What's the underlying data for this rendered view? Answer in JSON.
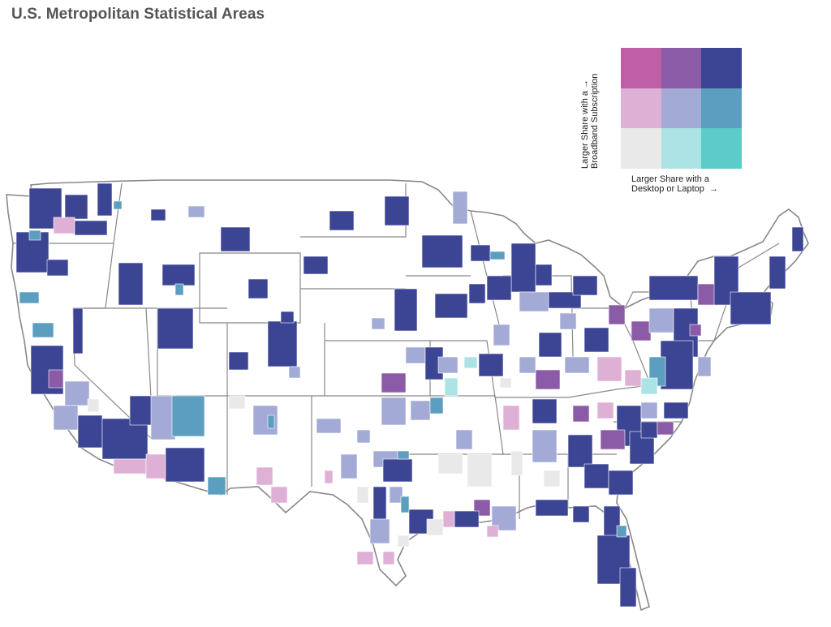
{
  "title": "U.S. Metropolitan Statistical Areas",
  "legend": {
    "y_label_line1": "Larger Share with a",
    "y_label_line2": "Broadband Subscription",
    "x_label_line1": "Larger Share with a",
    "x_label_line2": "Desktop or Laptop",
    "arrow_up": "→",
    "arrow_right": "→",
    "colors": [
      [
        "#be5fa8",
        "#8c5ba8",
        "#3c4494"
      ],
      [
        "#dfb0d5",
        "#a3aad6",
        "#5b9ec0"
      ],
      [
        "#e9e9e9",
        "#ace4e5",
        "#5ccbc9"
      ]
    ]
  },
  "palette": {
    "high_high": "#3c4494",
    "high_mid": "#8c5ba8",
    "high_low": "#be5fa8",
    "mid_high": "#5b9ec0",
    "mid_mid": "#a3aad6",
    "mid_low": "#dfb0d5",
    "low_high": "#5ccbc9",
    "low_mid": "#ace4e5",
    "low_low": "#e9e9e9",
    "border": "#888888",
    "land": "#ffffff"
  }
}
